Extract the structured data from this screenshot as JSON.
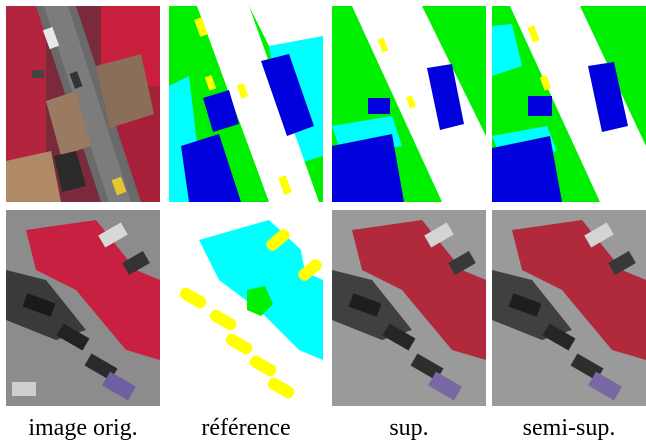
{
  "captions": {
    "original": "image orig.",
    "reference": "référence",
    "supervised": "sup.",
    "semi_supervised": "semi-sup."
  },
  "legend_colors": {
    "road": "#ffffff",
    "building": "#0000dd",
    "low_vegetation": "#00ffff",
    "tree": "#00ee00",
    "car": "#ffff00"
  }
}
